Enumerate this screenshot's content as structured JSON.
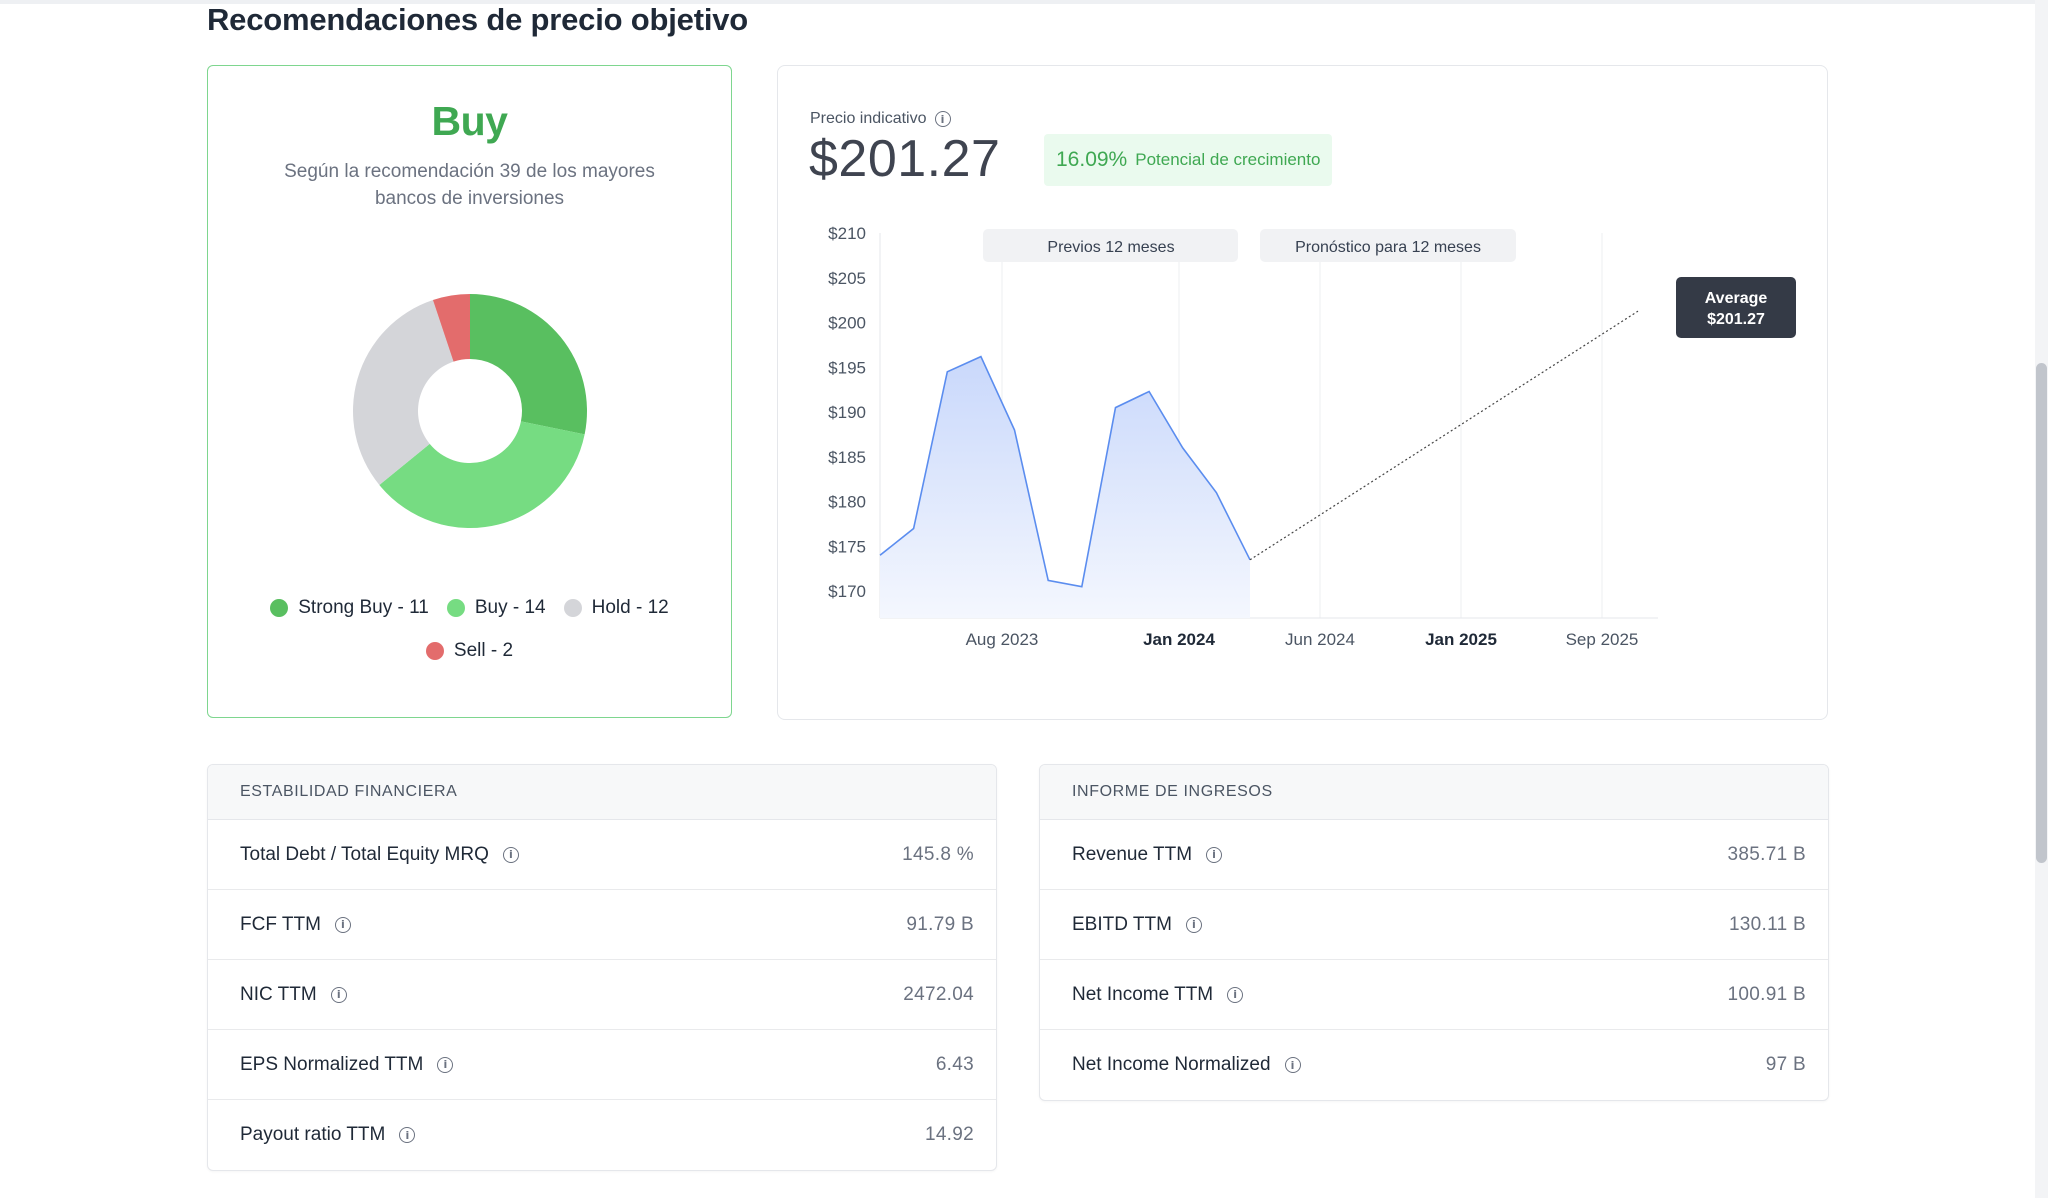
{
  "section_title": "Recomendaciones de precio objetivo",
  "rating": {
    "label": "Buy",
    "subtitle": "Según la recomendación 39 de los mayores bancos de inversiones",
    "legend": [
      {
        "label": "Strong Buy - 11",
        "count": 11,
        "color": "#59bf60"
      },
      {
        "label": "Buy - 14",
        "count": 14,
        "color": "#76dc82"
      },
      {
        "label": "Hold - 12",
        "count": 12,
        "color": "#d4d5d9"
      },
      {
        "label": "Sell - 2",
        "count": 2,
        "color": "#e36c6c"
      }
    ]
  },
  "price": {
    "label": "Precio indicativo",
    "value": "$201.27",
    "growth_pct": "16.09%",
    "growth_text": "Potencial de crecimiento"
  },
  "chart_data": {
    "type": "line",
    "period_labels": [
      "Previos 12 meses",
      "Pronóstico para 12 meses"
    ],
    "y_ticks": [
      "$210",
      "$205",
      "$200",
      "$195",
      "$190",
      "$185",
      "$180",
      "$175",
      "$170"
    ],
    "ylim": [
      167,
      210
    ],
    "x_ticks": [
      {
        "label": "Aug 2023",
        "bold": false
      },
      {
        "label": "Jan 2024",
        "bold": true
      },
      {
        "label": "Jun 2024",
        "bold": false
      },
      {
        "label": "Jan 2025",
        "bold": true
      },
      {
        "label": "Sep 2025",
        "bold": false
      }
    ],
    "series": [
      {
        "values": [
          174,
          177,
          194.5,
          196.2,
          188,
          171.2,
          170.5,
          190.5,
          192.3,
          186,
          181,
          173.5
        ]
      }
    ],
    "forecast": {
      "start": 173.5,
      "end": 201.27
    },
    "tooltip": {
      "label": "Average",
      "value": "$201.27"
    },
    "colors": {
      "line": "#5b8def",
      "fill": "#dbe5fd",
      "forecast": "#444444"
    }
  },
  "financial_stability": {
    "title": "ESTABILIDAD FINANCIERA",
    "rows": [
      {
        "label": "Total Debt / Total Equity MRQ",
        "value": "145.8 %"
      },
      {
        "label": "FCF TTM",
        "value": "91.79 B"
      },
      {
        "label": "NIC TTM",
        "value": "2472.04"
      },
      {
        "label": "EPS Normalized TTM",
        "value": "6.43"
      },
      {
        "label": "Payout ratio TTM",
        "value": "14.92"
      }
    ]
  },
  "income_report": {
    "title": "INFORME DE INGRESOS",
    "rows": [
      {
        "label": "Revenue TTM",
        "value": "385.71 B"
      },
      {
        "label": "EBITD TTM",
        "value": "130.11 B"
      },
      {
        "label": "Net Income TTM",
        "value": "100.91 B"
      },
      {
        "label": "Net Income Normalized",
        "value": "97 B"
      }
    ]
  }
}
